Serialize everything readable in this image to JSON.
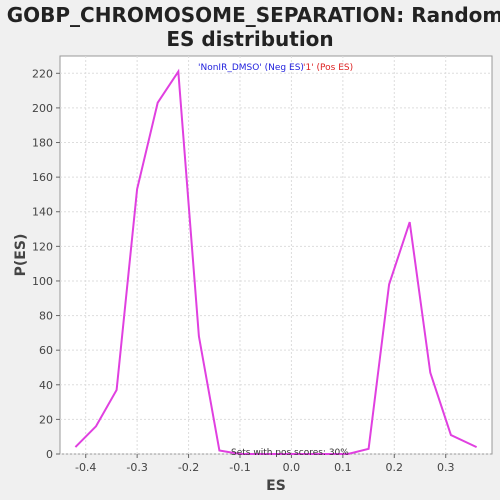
{
  "chart_data": {
    "type": "line",
    "title_line1": "GOBP_CHROMOSOME_SEPARATION: Random",
    "title_line2": "ES distribution",
    "xlabel": "ES",
    "ylabel": "P(ES)",
    "xlim": [
      -0.45,
      0.39
    ],
    "ylim": [
      0,
      230
    ],
    "x_ticks": [
      -0.4,
      -0.3,
      -0.2,
      -0.1,
      0.0,
      0.1,
      0.2,
      0.3
    ],
    "x_tick_labels": [
      "-0.4",
      "-0.3",
      "-0.2",
      "-0.1",
      "0.0",
      "0.1",
      "0.2",
      "0.3"
    ],
    "y_ticks": [
      0,
      20,
      40,
      60,
      80,
      100,
      120,
      140,
      160,
      180,
      200,
      220
    ],
    "y_tick_labels": [
      "0",
      "20",
      "40",
      "60",
      "80",
      "100",
      "120",
      "140",
      "160",
      "180",
      "200",
      "220"
    ],
    "grid": true,
    "legend": {
      "neg_label": "'NonIR_DMSO' (Neg ES)",
      "pos_label": "'1' (Pos ES)",
      "neg_color": "#2222dd",
      "pos_color": "#dd2222",
      "placement": "top-center"
    },
    "annotation": "Sets with pos scores: 30%",
    "series": [
      {
        "color": "#e040e0",
        "x": [
          -0.42,
          -0.38,
          -0.34,
          -0.3,
          -0.26,
          -0.22,
          -0.18,
          -0.14,
          -0.1,
          -0.06,
          -0.02,
          0.02,
          0.06,
          0.11,
          0.15,
          0.19,
          0.23,
          0.27,
          0.31,
          0.36
        ],
        "y": [
          4,
          16,
          37,
          153,
          203,
          221,
          68,
          2,
          0,
          0,
          0,
          0,
          0,
          0,
          3,
          98,
          134,
          47,
          11,
          4
        ]
      }
    ]
  }
}
